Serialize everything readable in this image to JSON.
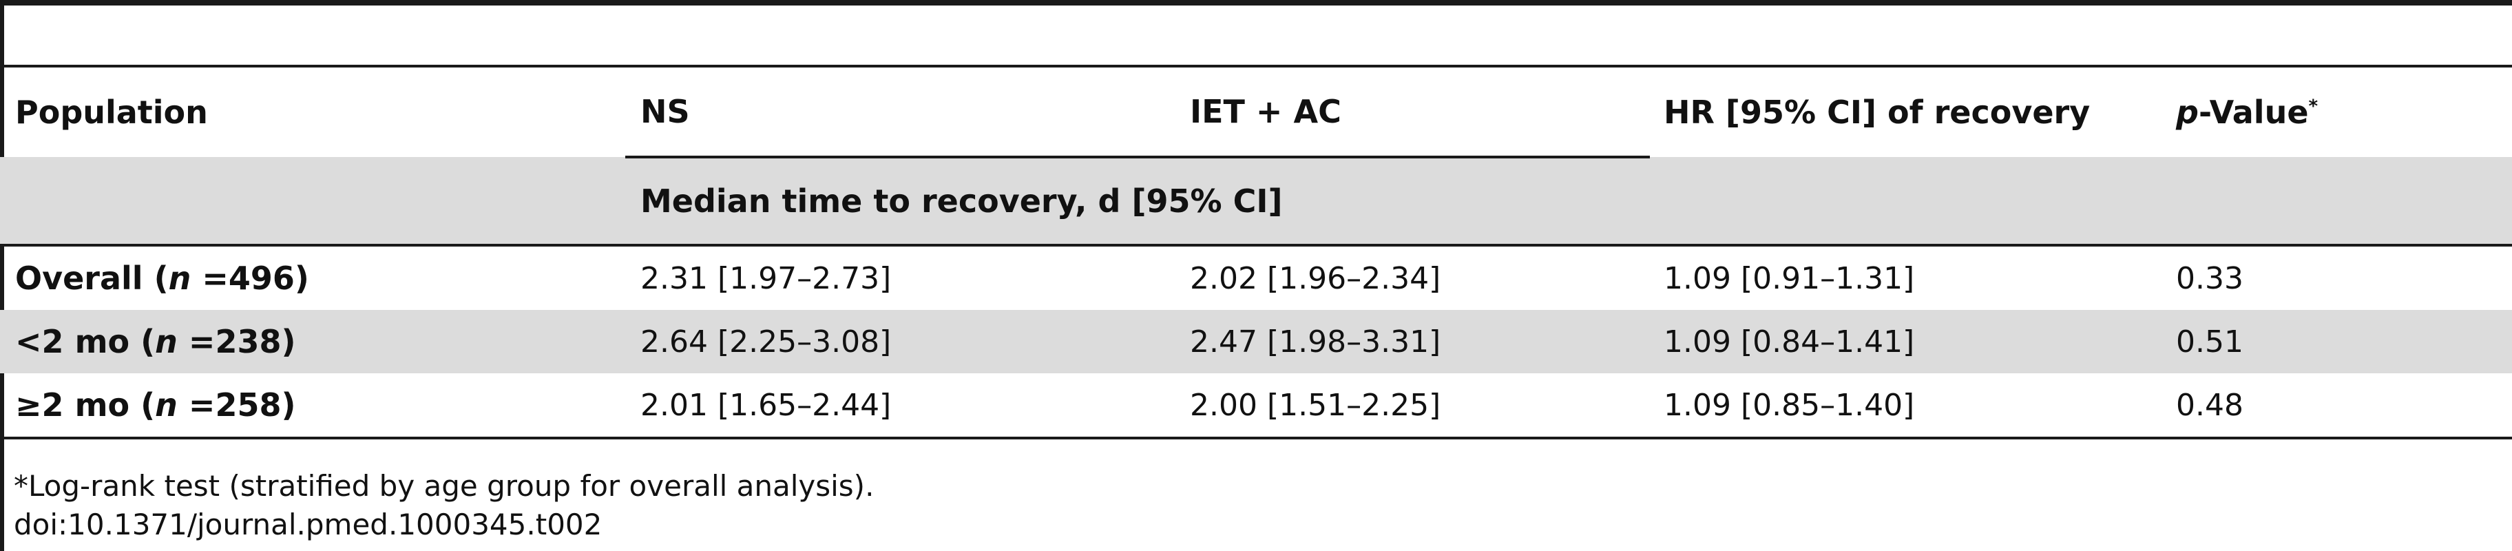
{
  "table": {
    "headers": {
      "population": "Population",
      "ns": "NS",
      "iet_ac": "IET + AC",
      "hr": "HR [95% CI] of recovery",
      "p_italic": "p",
      "p_rest": "-Value",
      "p_mark": "*",
      "subheader": "Median time to recovery, d [95% CI]"
    },
    "rows": [
      {
        "label_prefix": "Overall (",
        "label_n": "n",
        "label_suffix": " =496)",
        "ns": "2.31 [1.97–2.73]",
        "iet_ac": "2.02 [1.96–2.34]",
        "hr": "1.09 [0.91–1.31]",
        "p": "0.33"
      },
      {
        "label_prefix": "<2 mo (",
        "label_n": "n",
        "label_suffix": " =238)",
        "ns": "2.64 [2.25–3.08]",
        "iet_ac": "2.47 [1.98–3.31]",
        "hr": "1.09 [0.84–1.41]",
        "p": "0.51"
      },
      {
        "label_prefix": "≥2 mo (",
        "label_n": "n",
        "label_suffix": " =258)",
        "ns": "2.01 [1.65–2.44]",
        "iet_ac": "2.00 [1.51–2.25]",
        "hr": "1.09 [0.85–1.40]",
        "p": "0.48"
      }
    ]
  },
  "footnote": {
    "note": "*Log-rank test (stratified by age group for overall analysis).",
    "doi": "doi:10.1371/journal.pmed.1000345.t002"
  }
}
